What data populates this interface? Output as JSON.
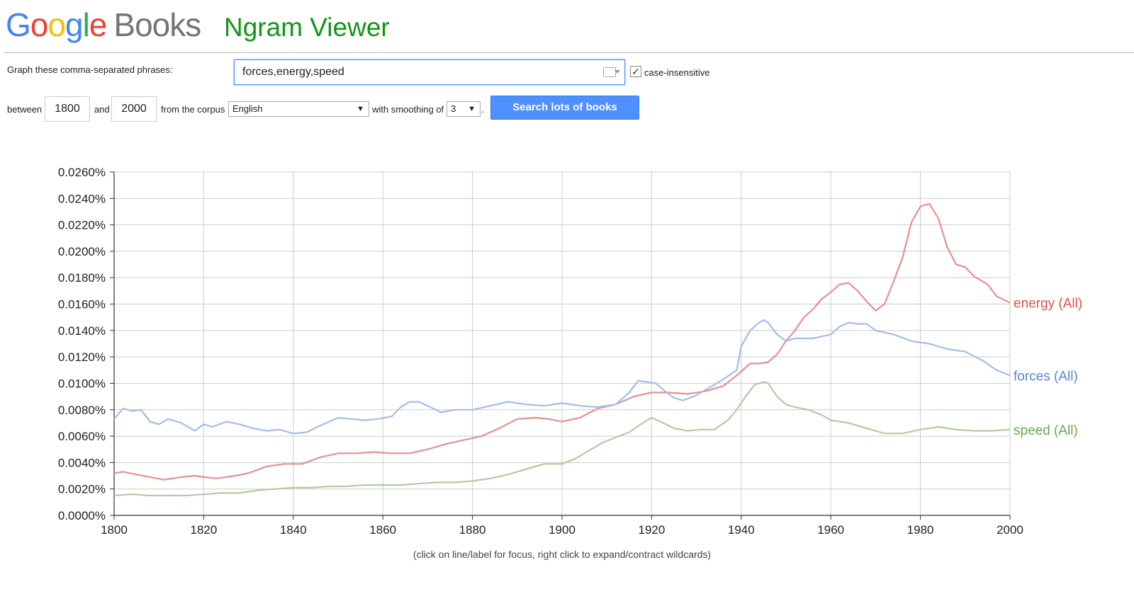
{
  "header": {
    "logo_google": "Google",
    "logo_books": "Books",
    "product": "Ngram Viewer"
  },
  "form": {
    "phrases_label": "Graph these comma-separated phrases:",
    "phrases_value": "forces,energy,speed",
    "case_insensitive_label": "case-insensitive",
    "case_insensitive_checked": true,
    "between_label": "between",
    "start_year": "1800",
    "and_label": "and",
    "end_year": "2000",
    "corpus_label": "from the corpus",
    "corpus_value": "English",
    "smoothing_label": "with smoothing of",
    "smoothing_value": "3",
    "period": ".",
    "search_button": "Search lots of books"
  },
  "chart_caption": "(click on line/label for focus, right click to expand/contract wildcards)",
  "chart_data": {
    "type": "line",
    "x_ticks": [
      1800,
      1820,
      1840,
      1860,
      1880,
      1900,
      1920,
      1940,
      1960,
      1980,
      2000
    ],
    "xlim": [
      1800,
      2000
    ],
    "ylim": [
      0,
      0.026
    ],
    "y_ticks": [
      0.0,
      0.002,
      0.004,
      0.006,
      0.008,
      0.01,
      0.012,
      0.014,
      0.016,
      0.018,
      0.02,
      0.022,
      0.024,
      0.026
    ],
    "y_tick_labels": [
      "0.0000%",
      "0.0020%",
      "0.0040%",
      "0.0060%",
      "0.0080%",
      "0.0100%",
      "0.0120%",
      "0.0140%",
      "0.0160%",
      "0.0180%",
      "0.0200%",
      "0.0220%",
      "0.0240%",
      "0.0260%"
    ],
    "grid": true,
    "series": [
      {
        "name": "energy (All)",
        "color": "#e8908e",
        "label_color": "#d9534f",
        "x": [
          1800,
          1802,
          1805,
          1808,
          1811,
          1815,
          1818,
          1820,
          1823,
          1827,
          1830,
          1834,
          1838,
          1842,
          1846,
          1850,
          1854,
          1858,
          1862,
          1866,
          1870,
          1874,
          1878,
          1882,
          1886,
          1890,
          1894,
          1897,
          1900,
          1904,
          1908,
          1912,
          1916,
          1920,
          1924,
          1928,
          1932,
          1936,
          1939,
          1942,
          1944,
          1946,
          1948,
          1950,
          1952,
          1954,
          1956,
          1958,
          1960,
          1962,
          1964,
          1966,
          1968,
          1970,
          1972,
          1974,
          1976,
          1978,
          1980,
          1982,
          1984,
          1986,
          1988,
          1990,
          1992,
          1995,
          1997,
          2000
        ],
        "values": [
          0.0032,
          0.0033,
          0.0031,
          0.0029,
          0.0027,
          0.0029,
          0.003,
          0.0029,
          0.0028,
          0.003,
          0.0032,
          0.0037,
          0.0039,
          0.0039,
          0.0044,
          0.0047,
          0.0047,
          0.0048,
          0.0047,
          0.0047,
          0.005,
          0.0054,
          0.0057,
          0.006,
          0.0066,
          0.0073,
          0.0074,
          0.0073,
          0.0071,
          0.0074,
          0.0081,
          0.0084,
          0.009,
          0.0093,
          0.0093,
          0.0092,
          0.0094,
          0.0098,
          0.0106,
          0.0115,
          0.0115,
          0.0116,
          0.0122,
          0.0132,
          0.014,
          0.015,
          0.0156,
          0.0164,
          0.0169,
          0.0175,
          0.0176,
          0.017,
          0.0162,
          0.0155,
          0.016,
          0.0177,
          0.0195,
          0.0222,
          0.0234,
          0.0236,
          0.0225,
          0.0203,
          0.019,
          0.0188,
          0.0181,
          0.0175,
          0.0166,
          0.0161
        ]
      },
      {
        "name": "forces (All)",
        "color": "#a4bde8",
        "label_color": "#5a86d6",
        "x": [
          1800,
          1802,
          1804,
          1806,
          1808,
          1810,
          1812,
          1815,
          1818,
          1820,
          1822,
          1825,
          1828,
          1831,
          1834,
          1837,
          1840,
          1843,
          1846,
          1850,
          1853,
          1856,
          1859,
          1862,
          1864,
          1866,
          1868,
          1870,
          1873,
          1876,
          1880,
          1884,
          1888,
          1892,
          1896,
          1900,
          1904,
          1908,
          1912,
          1915,
          1917,
          1919,
          1921,
          1923,
          1925,
          1927,
          1930,
          1933,
          1936,
          1939,
          1940,
          1942,
          1944,
          1945,
          1946,
          1948,
          1950,
          1952,
          1956,
          1960,
          1962,
          1964,
          1966,
          1968,
          1970,
          1974,
          1978,
          1982,
          1986,
          1990,
          1994,
          1997,
          2000
        ],
        "values": [
          0.0073,
          0.0081,
          0.0079,
          0.008,
          0.0071,
          0.0069,
          0.0073,
          0.007,
          0.0064,
          0.0069,
          0.0067,
          0.0071,
          0.0069,
          0.0066,
          0.0064,
          0.0065,
          0.0062,
          0.0063,
          0.0068,
          0.0074,
          0.0073,
          0.0072,
          0.0073,
          0.0075,
          0.0082,
          0.0086,
          0.0086,
          0.0083,
          0.0078,
          0.008,
          0.008,
          0.0083,
          0.0086,
          0.0084,
          0.0083,
          0.0085,
          0.0083,
          0.0082,
          0.0084,
          0.0093,
          0.0102,
          0.0101,
          0.01,
          0.0094,
          0.0089,
          0.0087,
          0.0091,
          0.0097,
          0.0103,
          0.011,
          0.0128,
          0.014,
          0.0146,
          0.0148,
          0.0146,
          0.0137,
          0.0132,
          0.0134,
          0.0134,
          0.0137,
          0.0143,
          0.0146,
          0.0145,
          0.0145,
          0.014,
          0.0137,
          0.0132,
          0.013,
          0.0126,
          0.0124,
          0.0117,
          0.011,
          0.0106
        ]
      },
      {
        "name": "speed (All)",
        "color": "#b0cca1",
        "label_color": "#6aa84f",
        "x": [
          1800,
          1804,
          1808,
          1812,
          1816,
          1820,
          1824,
          1828,
          1832,
          1836,
          1840,
          1844,
          1848,
          1852,
          1856,
          1860,
          1864,
          1868,
          1872,
          1876,
          1880,
          1884,
          1888,
          1892,
          1896,
          1900,
          1903,
          1906,
          1909,
          1912,
          1915,
          1918,
          1920,
          1922,
          1925,
          1928,
          1931,
          1934,
          1937,
          1939,
          1941,
          1943,
          1945,
          1946,
          1948,
          1950,
          1952,
          1955,
          1958,
          1960,
          1964,
          1968,
          1972,
          1976,
          1980,
          1984,
          1988,
          1992,
          1996,
          2000
        ],
        "values": [
          0.0015,
          0.0016,
          0.0015,
          0.0015,
          0.0015,
          0.0016,
          0.0017,
          0.0017,
          0.0019,
          0.002,
          0.0021,
          0.0021,
          0.0022,
          0.0022,
          0.0023,
          0.0023,
          0.0023,
          0.0024,
          0.0025,
          0.0025,
          0.0026,
          0.0028,
          0.0031,
          0.0035,
          0.0039,
          0.0039,
          0.0043,
          0.0049,
          0.0055,
          0.0059,
          0.0063,
          0.007,
          0.0074,
          0.0071,
          0.0066,
          0.0064,
          0.0065,
          0.0065,
          0.0072,
          0.008,
          0.009,
          0.0099,
          0.0101,
          0.01,
          0.009,
          0.0084,
          0.0082,
          0.008,
          0.0076,
          0.0072,
          0.007,
          0.0066,
          0.0062,
          0.0062,
          0.0065,
          0.0067,
          0.0065,
          0.0064,
          0.0064,
          0.0065
        ]
      }
    ]
  }
}
